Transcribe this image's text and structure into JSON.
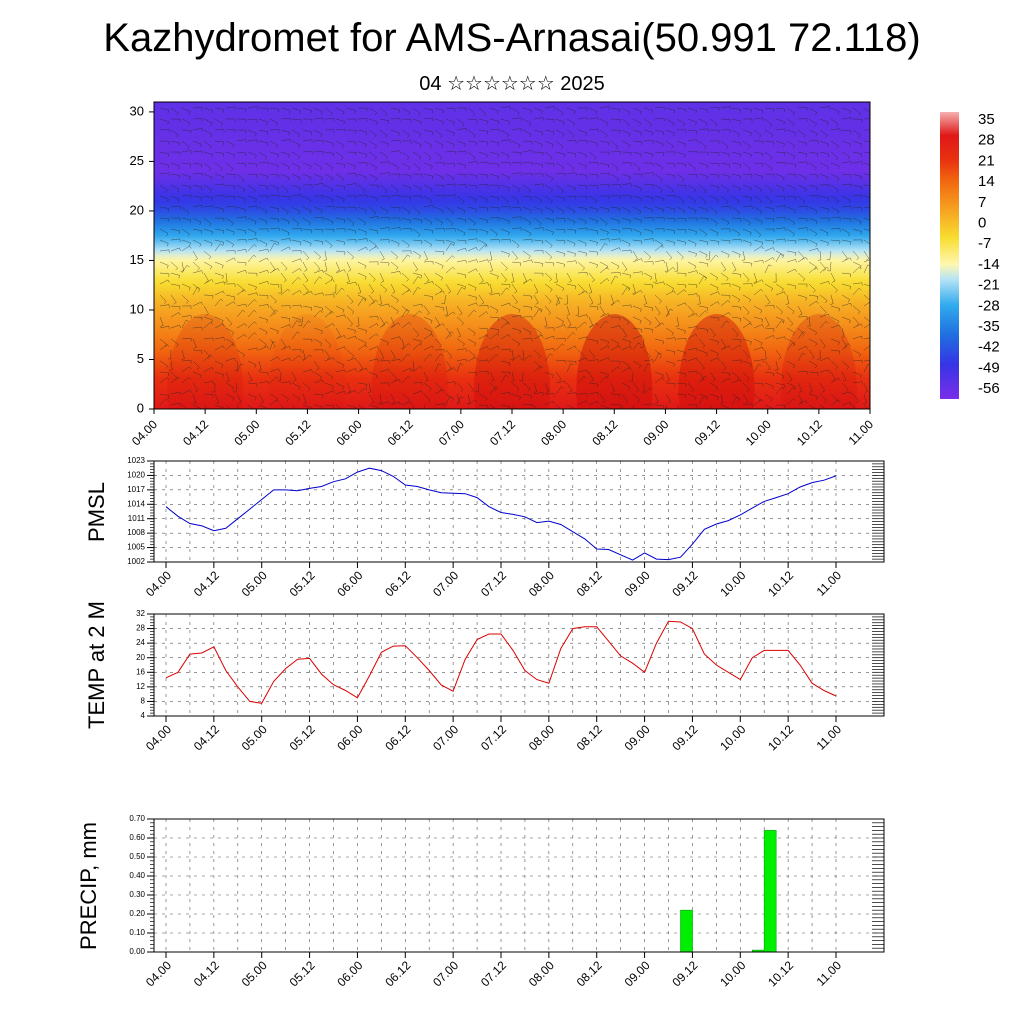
{
  "header": {
    "title": "Kazhydromet for AMS-Arnasai(50.991 72.118)",
    "subtitle": "04 ☆☆☆☆☆☆ 2025"
  },
  "x_ticks": [
    "04.00",
    "04.12",
    "05.00",
    "05.12",
    "06.00",
    "06.12",
    "07.00",
    "07.12",
    "08.00",
    "08.12",
    "09.00",
    "09.12",
    "10.00",
    "10.12",
    "11.00"
  ],
  "chart_data": [
    {
      "type": "heatmap",
      "title": "",
      "x_ticks": [
        "04.00",
        "04.12",
        "05.00",
        "05.12",
        "06.00",
        "06.12",
        "07.00",
        "07.12",
        "08.00",
        "08.12",
        "09.00",
        "09.12",
        "10.00",
        "10.12",
        "11.00"
      ],
      "y_ticks": [
        0,
        5,
        10,
        15,
        20,
        25,
        30
      ],
      "ylim": [
        0,
        31
      ],
      "colorbar_labels": [
        "35",
        "28",
        "21",
        "14",
        "7",
        "0",
        "-7",
        "-14",
        "-21",
        "-28",
        "-35",
        "-42",
        "-49",
        "-56"
      ],
      "colorbar_range": [
        -60,
        38
      ],
      "colormap_stops": [
        {
          "v": 38,
          "c": "#f5b0b0"
        },
        {
          "v": 30,
          "c": "#e01818"
        },
        {
          "v": 22,
          "c": "#e83010"
        },
        {
          "v": 14,
          "c": "#f26a10"
        },
        {
          "v": 5,
          "c": "#f6a020"
        },
        {
          "v": -5,
          "c": "#f8dd30"
        },
        {
          "v": -14,
          "c": "#fff7b0"
        },
        {
          "v": -19,
          "c": "#b8e4f5"
        },
        {
          "v": -28,
          "c": "#30aaee"
        },
        {
          "v": -38,
          "c": "#2070e0"
        },
        {
          "v": -48,
          "c": "#3535e6"
        },
        {
          "v": -60,
          "c": "#7a2ee8"
        }
      ],
      "grid": false
    },
    {
      "type": "line",
      "ylabel": "PMSL",
      "y_ticks": [
        1002,
        1005,
        1008,
        1011,
        1014,
        1017,
        1020,
        1023
      ],
      "ylim": [
        1002,
        1023
      ],
      "x": [
        0,
        3,
        6,
        9,
        12,
        15,
        18,
        21,
        24,
        27,
        30,
        33,
        36,
        39,
        42,
        45,
        48,
        51,
        54,
        57,
        60,
        63,
        66,
        69,
        72,
        75,
        78,
        81,
        84,
        87,
        90,
        93,
        96,
        99,
        102,
        105,
        108,
        111,
        114,
        117,
        120,
        123,
        126,
        129,
        132,
        135,
        138,
        141,
        144,
        147,
        150,
        153,
        156,
        159,
        162,
        165,
        168
      ],
      "series": [
        {
          "color": "#0000cc",
          "values": [
            1013.5,
            1011.5,
            1010,
            1009.5,
            1008.5,
            1009,
            1011,
            1013,
            1015,
            1017,
            1017,
            1016.8,
            1017.3,
            1017.7,
            1018.7,
            1019.3,
            1020.7,
            1021.5,
            1021,
            1019.8,
            1018,
            1017.7,
            1017,
            1016.4,
            1016.3,
            1016.2,
            1015.4,
            1013.5,
            1012.3,
            1011.9,
            1011.4,
            1010.2,
            1010.5,
            1009.8,
            1008.3,
            1006.8,
            1004.7,
            1004.6,
            1003.5,
            1002.4,
            1003.9,
            1002.6,
            1002.5,
            1003,
            1005.7,
            1008.8,
            1009.9,
            1010.6,
            1011.8,
            1013.2,
            1014.6,
            1015.4,
            1016.2,
            1017.6,
            1018.5,
            1019,
            1019.9
          ]
        }
      ]
    },
    {
      "type": "line",
      "ylabel": "TEMP at 2 M",
      "y_ticks": [
        4,
        8,
        12,
        16,
        20,
        24,
        28,
        32
      ],
      "ylim": [
        4,
        32
      ],
      "x": [
        0,
        3,
        6,
        9,
        12,
        15,
        18,
        21,
        24,
        27,
        30,
        33,
        36,
        39,
        42,
        45,
        48,
        51,
        54,
        57,
        60,
        63,
        66,
        69,
        72,
        75,
        78,
        81,
        84,
        87,
        90,
        93,
        96,
        99,
        102,
        105,
        108,
        111,
        114,
        117,
        120,
        123,
        126,
        129,
        132,
        135,
        138,
        141,
        144,
        147,
        150,
        153,
        156,
        159,
        162,
        165,
        168
      ],
      "series": [
        {
          "color": "#dd0000",
          "values": [
            14.5,
            16,
            21,
            21.3,
            23,
            16.5,
            12,
            8,
            7.5,
            13.5,
            17,
            19.6,
            19.8,
            15.5,
            12.6,
            11,
            9,
            15,
            21.5,
            23.2,
            23.3,
            20,
            16.5,
            12.5,
            10.8,
            19.5,
            25,
            26.5,
            26.5,
            22,
            16.5,
            14,
            13,
            22.5,
            28,
            28.5,
            28.5,
            24.5,
            20.5,
            18.5,
            16,
            24,
            30,
            29.8,
            28,
            21,
            18,
            16,
            14,
            20,
            22,
            22,
            22,
            18,
            13,
            11,
            9.5
          ]
        }
      ]
    },
    {
      "type": "bar",
      "ylabel": "PRECIP, mm",
      "y_ticks": [
        "0.00",
        "0.10",
        "0.20",
        "0.30",
        "0.40",
        "0.50",
        "0.60",
        "0.70"
      ],
      "ylim": [
        0,
        0.7
      ],
      "bars": [
        {
          "x": 130.5,
          "value": 0.22,
          "width": 3
        },
        {
          "x": 148.5,
          "value": 0.01,
          "width": 3
        },
        {
          "x": 151.5,
          "value": 0.64,
          "width": 3
        }
      ],
      "color": "#00ee00"
    }
  ]
}
